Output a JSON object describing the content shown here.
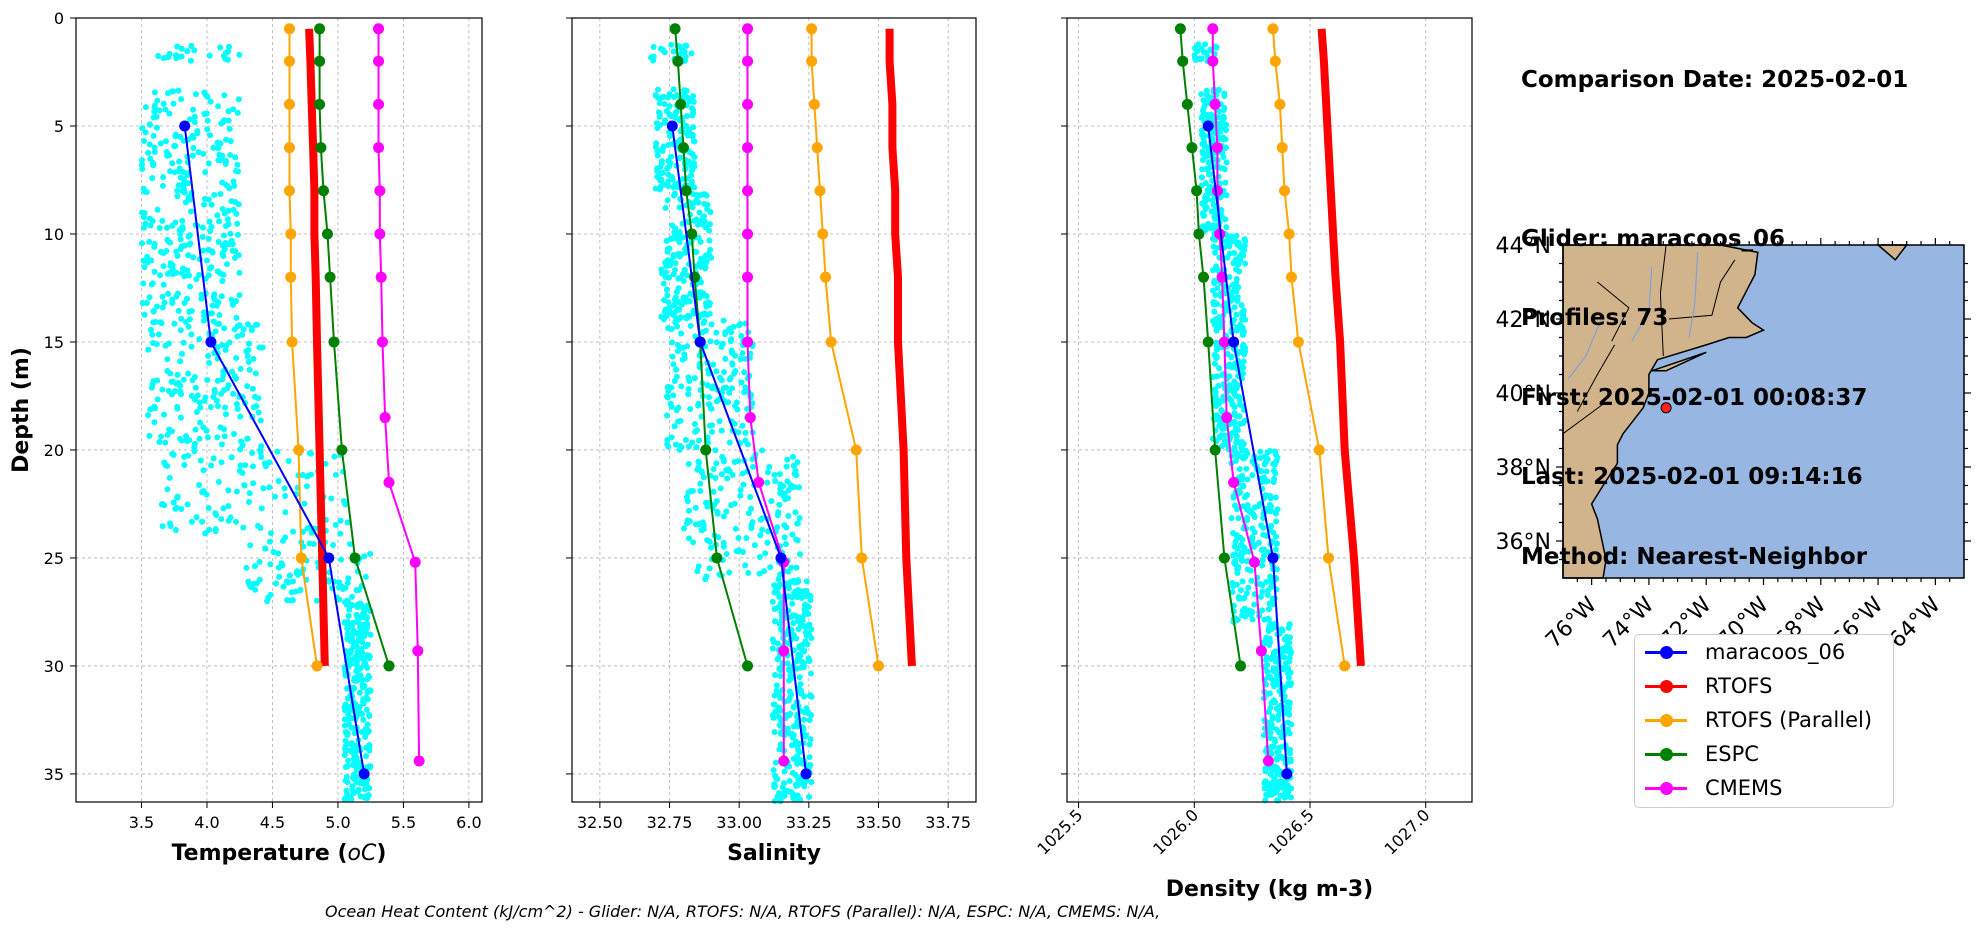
{
  "info": {
    "comparison_date": "Comparison Date: 2025-02-01",
    "glider": "Glider: maracoos_06",
    "profiles": "Profiles: 73",
    "first": "First: 2025-02-01 00:08:37",
    "last": "Last: 2025-02-01 09:14:16",
    "method": "Method: Nearest-Neighbor"
  },
  "footer": {
    "ohc": "Ocean Heat Content (kJ/cm^2) - Glider: N/A,  RTOFS: N/A,  RTOFS (Parallel): N/A,  ESPC: N/A,  CMEMS: N/A,"
  },
  "colors": {
    "glider_scatter": "#00FFFF",
    "maracoos_06": "#0000FF",
    "RTOFS": "#FF0000",
    "RTOFS_parallel": "#FFA500",
    "ESPC": "#008000",
    "CMEMS": "#FF00FF",
    "land": "#D2B48C",
    "ocean": "#97B6E1"
  },
  "legend": [
    {
      "label": "maracoos_06",
      "color": "#0000FF"
    },
    {
      "label": "RTOFS",
      "color": "#FF0000"
    },
    {
      "label": "RTOFS (Parallel)",
      "color": "#FFA500"
    },
    {
      "label": "ESPC",
      "color": "#008000"
    },
    {
      "label": "CMEMS",
      "color": "#FF00FF"
    }
  ],
  "chart_data": [
    {
      "type": "line",
      "xlabel": "Temperature (°C)",
      "ylabel": "Depth (m)",
      "xlim": [
        3.0,
        6.1
      ],
      "ylim": [
        36.3,
        0
      ],
      "xticks": [
        "3.5",
        "4.0",
        "4.5",
        "5.0",
        "5.5",
        "6.0"
      ],
      "yticks": [
        "0",
        "5",
        "10",
        "15",
        "20",
        "25",
        "30",
        "35"
      ],
      "grid": true,
      "scatter": {
        "name": "glider profiles",
        "bands": [
          {
            "d0": 1.2,
            "d1": 2.0,
            "x0": 3.55,
            "x1": 4.25
          },
          {
            "d0": 3.3,
            "d1": 14.0,
            "x0": 3.5,
            "x1": 4.25
          },
          {
            "d0": 14.0,
            "d1": 20.0,
            "x0": 3.55,
            "x1": 4.45
          },
          {
            "d0": 20.0,
            "d1": 24.0,
            "x0": 3.65,
            "x1": 5.1
          },
          {
            "d0": 24.0,
            "d1": 27.0,
            "x0": 4.3,
            "x1": 5.25
          },
          {
            "d0": 27.0,
            "d1": 36.3,
            "x0": 5.05,
            "x1": 5.25
          }
        ]
      },
      "series": [
        {
          "name": "maracoos_06",
          "width": 2,
          "depth": [
            5,
            15,
            25,
            35
          ],
          "values": [
            3.83,
            4.03,
            4.93,
            5.2
          ]
        },
        {
          "name": "RTOFS",
          "width": 8,
          "depth": [
            0.5,
            2,
            4,
            6,
            8,
            10,
            12,
            15,
            20,
            25,
            30
          ],
          "values": [
            4.78,
            4.79,
            4.8,
            4.81,
            4.82,
            4.82,
            4.83,
            4.84,
            4.86,
            4.88,
            4.9
          ]
        },
        {
          "name": "RTOFS (Parallel)",
          "width": 2,
          "depth": [
            0.5,
            2,
            4,
            6,
            8,
            10,
            12,
            15,
            20,
            25,
            30
          ],
          "values": [
            4.63,
            4.63,
            4.63,
            4.63,
            4.63,
            4.64,
            4.64,
            4.65,
            4.7,
            4.72,
            4.84
          ]
        },
        {
          "name": "ESPC",
          "width": 2,
          "depth": [
            0.5,
            2,
            4,
            6,
            8,
            10,
            12,
            15,
            20,
            25,
            30
          ],
          "values": [
            4.86,
            4.86,
            4.86,
            4.87,
            4.89,
            4.92,
            4.94,
            4.97,
            5.03,
            5.13,
            5.39
          ]
        },
        {
          "name": "CMEMS",
          "width": 2,
          "depth": [
            0.5,
            2,
            4,
            6,
            8,
            10,
            12,
            15,
            18.5,
            21.5,
            25.2,
            29.3,
            34.4
          ],
          "values": [
            5.31,
            5.31,
            5.31,
            5.31,
            5.32,
            5.32,
            5.33,
            5.34,
            5.36,
            5.39,
            5.59,
            5.61,
            5.62
          ]
        }
      ]
    },
    {
      "type": "line",
      "xlabel": "Salinity",
      "ylabel": "",
      "xlim": [
        32.4,
        33.85
      ],
      "ylim": [
        36.3,
        0
      ],
      "xticks": [
        "32.50",
        "32.75",
        "33.00",
        "33.25",
        "33.50",
        "33.75"
      ],
      "grid": true,
      "scatter": {
        "name": "glider profiles",
        "bands": [
          {
            "d0": 1.2,
            "d1": 2.0,
            "x0": 32.68,
            "x1": 32.83
          },
          {
            "d0": 3.3,
            "d1": 8.0,
            "x0": 32.7,
            "x1": 32.84
          },
          {
            "d0": 8.0,
            "d1": 14.0,
            "x0": 32.72,
            "x1": 32.9
          },
          {
            "d0": 14.0,
            "d1": 20.0,
            "x0": 32.74,
            "x1": 33.05
          },
          {
            "d0": 20.0,
            "d1": 26.0,
            "x0": 32.8,
            "x1": 33.22
          },
          {
            "d0": 26.0,
            "d1": 36.3,
            "x0": 33.12,
            "x1": 33.26
          }
        ]
      },
      "series": [
        {
          "name": "maracoos_06",
          "width": 2,
          "depth": [
            5,
            15,
            25,
            35
          ],
          "values": [
            32.76,
            32.86,
            33.15,
            33.24
          ]
        },
        {
          "name": "RTOFS",
          "width": 8,
          "depth": [
            0.5,
            2,
            4,
            6,
            8,
            10,
            12,
            15,
            20,
            25,
            30
          ],
          "values": [
            33.54,
            33.54,
            33.55,
            33.55,
            33.56,
            33.56,
            33.57,
            33.57,
            33.59,
            33.6,
            33.62
          ]
        },
        {
          "name": "RTOFS (Parallel)",
          "width": 2,
          "depth": [
            0.5,
            2,
            4,
            6,
            8,
            10,
            12,
            15,
            20,
            25,
            30
          ],
          "values": [
            33.26,
            33.26,
            33.27,
            33.28,
            33.29,
            33.3,
            33.31,
            33.33,
            33.42,
            33.44,
            33.5
          ]
        },
        {
          "name": "ESPC",
          "width": 2,
          "depth": [
            0.5,
            2,
            4,
            6,
            8,
            10,
            12,
            15,
            20,
            25,
            30
          ],
          "values": [
            32.77,
            32.78,
            32.79,
            32.8,
            32.81,
            32.83,
            32.84,
            32.86,
            32.88,
            32.92,
            33.03
          ]
        },
        {
          "name": "CMEMS",
          "width": 2,
          "depth": [
            0.5,
            2,
            4,
            6,
            8,
            10,
            12,
            15,
            18.5,
            21.5,
            25.2,
            29.3,
            34.4
          ],
          "values": [
            33.03,
            33.03,
            33.03,
            33.03,
            33.03,
            33.03,
            33.03,
            33.03,
            33.04,
            33.07,
            33.16,
            33.16,
            33.16
          ]
        }
      ]
    },
    {
      "type": "line",
      "xlabel": "Density (kg m-3)",
      "ylabel": "",
      "xlim": [
        1025.45,
        1027.2
      ],
      "ylim": [
        36.3,
        0
      ],
      "xticks": [
        "1025.5",
        "1026.0",
        "1026.5",
        "1027.0"
      ],
      "grid": true,
      "scatter": {
        "name": "glider profiles",
        "bands": [
          {
            "d0": 1.2,
            "d1": 2.0,
            "x0": 1026.0,
            "x1": 1026.1
          },
          {
            "d0": 3.3,
            "d1": 10.0,
            "x0": 1026.03,
            "x1": 1026.14
          },
          {
            "d0": 10.0,
            "d1": 20.0,
            "x0": 1026.08,
            "x1": 1026.22
          },
          {
            "d0": 20.0,
            "d1": 28.0,
            "x0": 1026.16,
            "x1": 1026.36
          },
          {
            "d0": 28.0,
            "d1": 36.3,
            "x0": 1026.3,
            "x1": 1026.42
          }
        ]
      },
      "series": [
        {
          "name": "maracoos_06",
          "width": 2,
          "depth": [
            5,
            15,
            25,
            35
          ],
          "values": [
            1026.06,
            1026.17,
            1026.34,
            1026.4
          ]
        },
        {
          "name": "RTOFS",
          "width": 8,
          "depth": [
            0.5,
            2,
            4,
            6,
            8,
            10,
            12,
            15,
            20,
            25,
            30
          ],
          "values": [
            1026.55,
            1026.56,
            1026.57,
            1026.58,
            1026.59,
            1026.6,
            1026.61,
            1026.63,
            1026.65,
            1026.69,
            1026.72
          ]
        },
        {
          "name": "RTOFS (Parallel)",
          "width": 2,
          "depth": [
            0.5,
            2,
            4,
            6,
            8,
            10,
            12,
            15,
            20,
            25,
            30
          ],
          "values": [
            1026.34,
            1026.35,
            1026.37,
            1026.38,
            1026.39,
            1026.41,
            1026.42,
            1026.45,
            1026.54,
            1026.58,
            1026.65
          ]
        },
        {
          "name": "ESPC",
          "width": 2,
          "depth": [
            0.5,
            2,
            4,
            6,
            8,
            10,
            12,
            15,
            20,
            25,
            30
          ],
          "values": [
            1025.94,
            1025.95,
            1025.97,
            1025.99,
            1026.01,
            1026.02,
            1026.04,
            1026.06,
            1026.09,
            1026.13,
            1026.2
          ]
        },
        {
          "name": "CMEMS",
          "width": 2,
          "depth": [
            0.5,
            2,
            4,
            6,
            8,
            10,
            12,
            15,
            18.5,
            21.5,
            25.2,
            29.3,
            34.4
          ],
          "values": [
            1026.08,
            1026.08,
            1026.09,
            1026.1,
            1026.1,
            1026.11,
            1026.12,
            1026.13,
            1026.14,
            1026.17,
            1026.26,
            1026.29,
            1026.32
          ]
        }
      ]
    }
  ],
  "map": {
    "lon_labels": [
      "76°W",
      "74°W",
      "72°W",
      "70°W",
      "68°W",
      "66°W",
      "64°W"
    ],
    "lat_labels": [
      "44°N",
      "42°N",
      "40°N",
      "38°N",
      "36°N"
    ],
    "lon_range": [
      -77,
      -63
    ],
    "lat_range": [
      35,
      44
    ],
    "glider_position": {
      "lon": -73.4,
      "lat": 39.6
    }
  }
}
